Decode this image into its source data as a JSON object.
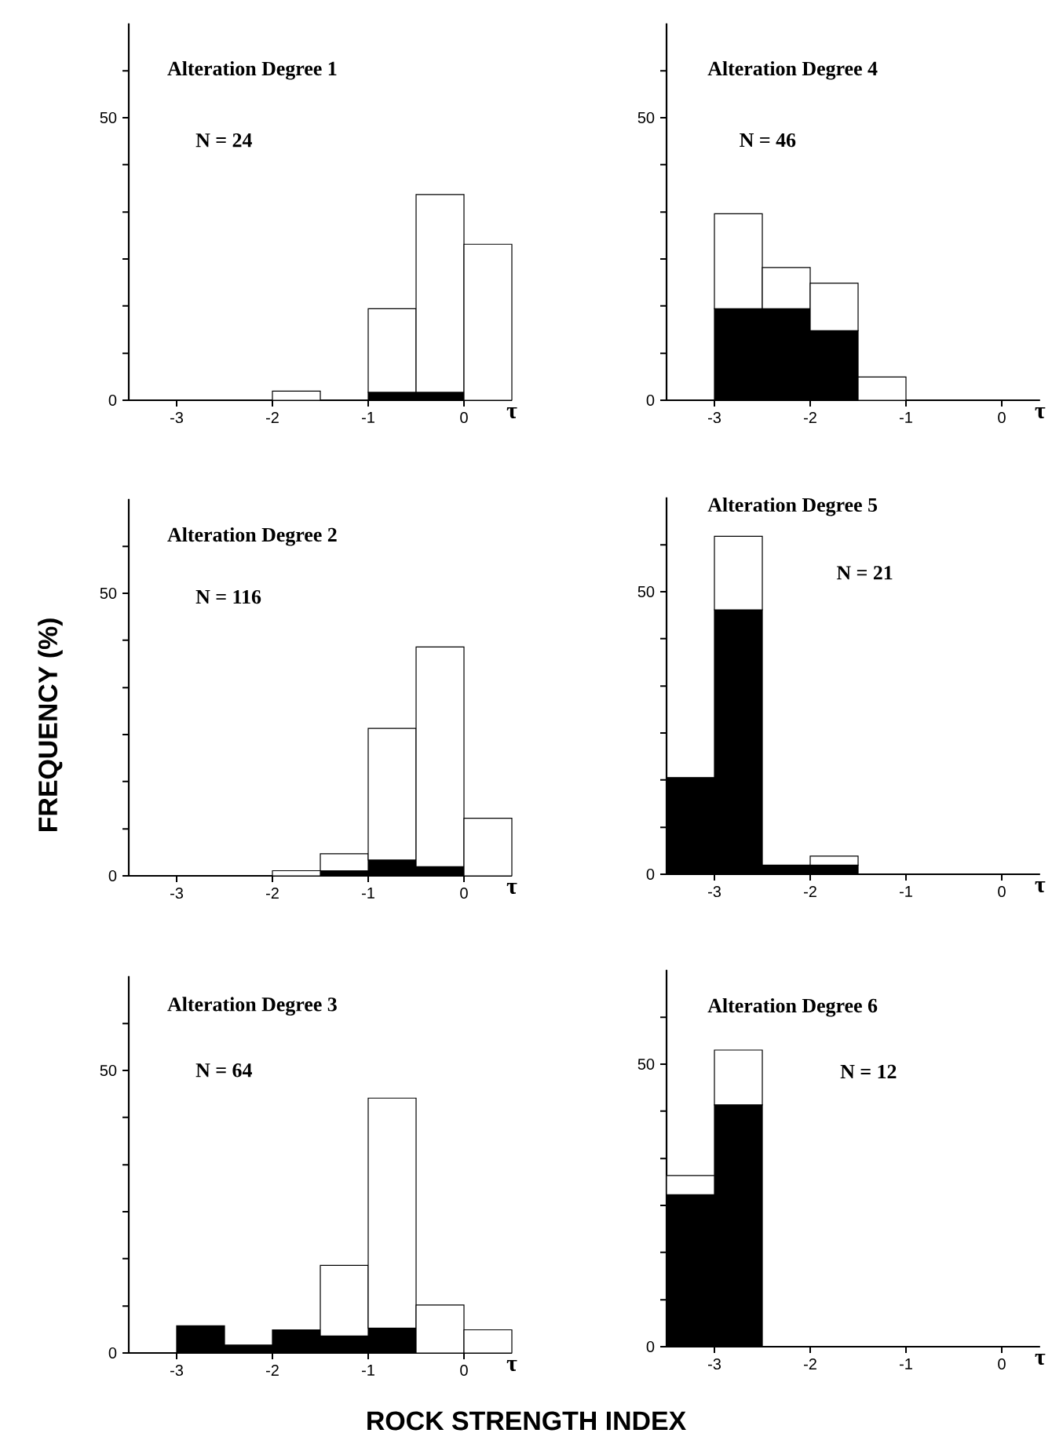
{
  "chart_data": [
    {
      "type": "bar",
      "title": "Alteration Degree 1",
      "subtitle": "N = 24",
      "xlabel": "τ",
      "x": [
        -3.25,
        -2.75,
        -2.25,
        -1.75,
        -1.25,
        -0.75,
        -0.25,
        0.25
      ],
      "stacked": true,
      "series": [
        {
          "color": "#000000",
          "values": [
            0,
            0,
            0,
            0,
            0,
            1.4,
            1.4,
            0
          ]
        },
        {
          "color": "#ffffff",
          "values": [
            0,
            0,
            0,
            1.6,
            0,
            14.8,
            35,
            27.6
          ]
        }
      ],
      "xlim": [
        -3.5,
        0.5
      ],
      "ylim": [
        0,
        66.7
      ],
      "xticks": [
        -3,
        -2,
        -1,
        0
      ],
      "yticks": [
        0,
        {
          "value": 8.3,
          "label": null
        },
        {
          "value": 16.7,
          "label": null
        },
        {
          "value": 25,
          "label": null
        },
        {
          "value": 33.3,
          "label": null
        },
        {
          "value": 41.7,
          "label": null
        },
        50,
        {
          "value": 58.3,
          "label": null
        }
      ]
    },
    {
      "type": "bar",
      "title": "Alteration Degree 4",
      "subtitle": "N = 46",
      "xlabel": "τ",
      "x": [
        -3.25,
        -2.75,
        -2.25,
        -1.75,
        -1.25,
        -0.75,
        -0.25
      ],
      "stacked": true,
      "series": [
        {
          "color": "#000000",
          "values": [
            0,
            16.2,
            16.2,
            12.3,
            0,
            0,
            0
          ]
        },
        {
          "color": "#ffffff",
          "values": [
            0,
            16.8,
            7.3,
            8.4,
            4.1,
            0,
            0
          ]
        }
      ],
      "xlim": [
        -3.5,
        0.4
      ],
      "ylim": [
        0,
        66.7
      ],
      "xticks": [
        -3,
        -2,
        -1,
        0
      ],
      "yticks": [
        0,
        {
          "value": 8.3,
          "label": null
        },
        {
          "value": 16.7,
          "label": null
        },
        {
          "value": 25,
          "label": null
        },
        {
          "value": 33.3,
          "label": null
        },
        {
          "value": 41.7,
          "label": null
        },
        50,
        {
          "value": 58.3,
          "label": null
        }
      ]
    },
    {
      "type": "bar",
      "title": "Alteration Degree 2",
      "subtitle": "N = 116",
      "xlabel": "τ",
      "ylabel": "FREQUENCY (%)",
      "x": [
        -3.25,
        -2.75,
        -2.25,
        -1.75,
        -1.25,
        -0.75,
        -0.25,
        0.25
      ],
      "stacked": true,
      "series": [
        {
          "color": "#000000",
          "values": [
            0,
            0,
            0,
            0,
            0.9,
            2.8,
            1.6,
            0
          ]
        },
        {
          "color": "#ffffff",
          "values": [
            0,
            0,
            0,
            0.9,
            3,
            23.3,
            38.9,
            10.2
          ]
        }
      ],
      "xlim": [
        -3.5,
        0.5
      ],
      "ylim": [
        0,
        66.7
      ],
      "xticks": [
        -3,
        -2,
        -1,
        0
      ],
      "yticks": [
        0,
        {
          "value": 8.3,
          "label": null
        },
        {
          "value": 16.7,
          "label": null
        },
        {
          "value": 25,
          "label": null
        },
        {
          "value": 33.3,
          "label": null
        },
        {
          "value": 41.7,
          "label": null
        },
        50,
        {
          "value": 58.3,
          "label": null
        }
      ]
    },
    {
      "type": "bar",
      "title": "Alteration Degree 5",
      "subtitle": "N = 21",
      "xlabel": "τ",
      "x": [
        -3.25,
        -2.75,
        -2.25,
        -1.75,
        -1.25,
        -0.75,
        -0.25
      ],
      "stacked": true,
      "series": [
        {
          "color": "#000000",
          "values": [
            17.1,
            46.8,
            1.6,
            1.6,
            0,
            0,
            0
          ]
        },
        {
          "color": "#ffffff",
          "values": [
            0,
            13,
            0,
            1.6,
            0,
            0,
            0
          ]
        }
      ],
      "xlim": [
        -3.5,
        0.4
      ],
      "ylim": [
        0,
        66.7
      ],
      "xticks": [
        -3,
        -2,
        -1,
        0
      ],
      "yticks": [
        0,
        {
          "value": 8.3,
          "label": null
        },
        {
          "value": 16.7,
          "label": null
        },
        {
          "value": 25,
          "label": null
        },
        {
          "value": 33.3,
          "label": null
        },
        {
          "value": 41.7,
          "label": null
        },
        50,
        {
          "value": 58.3,
          "label": null
        }
      ]
    },
    {
      "type": "bar",
      "title": "Alteration Degree 3",
      "subtitle": "N = 64",
      "xlabel": "τ",
      "annotations": [
        "ROCK STRENGTH INDEX"
      ],
      "x": [
        -3.25,
        -2.75,
        -2.25,
        -1.75,
        -1.25,
        -0.75,
        -0.25,
        0.25
      ],
      "stacked": true,
      "series": [
        {
          "color": "#000000",
          "values": [
            0,
            4.8,
            1.4,
            4.1,
            3.0,
            4.4,
            0,
            0
          ]
        },
        {
          "color": "#ffffff",
          "values": [
            0,
            0,
            0,
            0,
            12.5,
            40.7,
            8.5,
            4.1
          ]
        }
      ],
      "xlim": [
        -3.5,
        0.5
      ],
      "ylim": [
        0,
        66.7
      ],
      "xticks": [
        -3,
        -2,
        -1,
        0
      ],
      "yticks": [
        0,
        {
          "value": 8.3,
          "label": null
        },
        {
          "value": 16.7,
          "label": null
        },
        {
          "value": 25,
          "label": null
        },
        {
          "value": 33.3,
          "label": null
        },
        {
          "value": 41.7,
          "label": null
        },
        50,
        {
          "value": 58.3,
          "label": null
        }
      ]
    },
    {
      "type": "bar",
      "title": "Alteration Degree 6",
      "subtitle": "N = 12",
      "xlabel": "τ",
      "x": [
        -3.25,
        -2.75,
        -2.25,
        -1.75,
        -1.25,
        -0.75,
        -0.25
      ],
      "stacked": true,
      "series": [
        {
          "color": "#000000",
          "values": [
            26.9,
            42.8,
            0,
            0,
            0,
            0,
            0
          ]
        },
        {
          "color": "#ffffff",
          "values": [
            3.4,
            9.7,
            0,
            0,
            0,
            0,
            0
          ]
        }
      ],
      "xlim": [
        -3.5,
        0.4
      ],
      "ylim": [
        0,
        66.7
      ],
      "xticks": [
        -3,
        -2,
        -1,
        0
      ],
      "yticks": [
        0,
        {
          "value": 8.3,
          "label": null
        },
        {
          "value": 16.7,
          "label": null
        },
        {
          "value": 25,
          "label": null
        },
        {
          "value": 33.3,
          "label": null
        },
        {
          "value": 41.7,
          "label": null
        },
        50,
        {
          "value": 58.3,
          "label": null
        }
      ]
    }
  ]
}
